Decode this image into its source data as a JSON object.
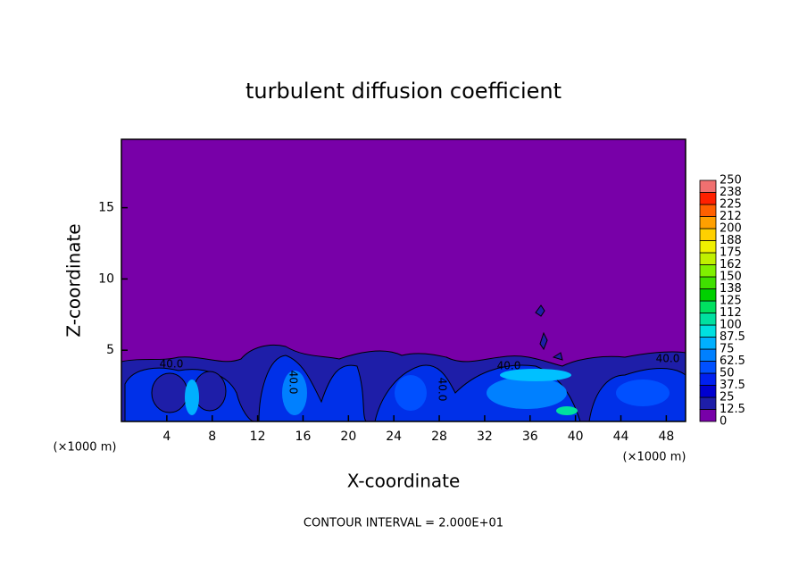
{
  "chart_data": {
    "type": "contour",
    "title": "turbulent diffusion coefficient",
    "x_label": "X-coordinate",
    "y_label": "Z-coordinate",
    "x_unit": "(×1000 m)",
    "y_unit": "(×1000 m)",
    "footer": "CONTOUR INTERVAL = 2.000E+01",
    "xlim": [
      0,
      49.7
    ],
    "ylim": [
      0,
      19.8
    ],
    "xticks": [
      4,
      8,
      12,
      16,
      20,
      24,
      28,
      32,
      36,
      40,
      44,
      48
    ],
    "yticks": [
      5,
      10,
      15
    ],
    "contour_labels": [
      "40.0",
      "40.0",
      "40.0",
      "40.0",
      "40.0"
    ],
    "colorbar": {
      "levels": [
        0,
        12.5,
        25,
        37.5,
        50,
        62.5,
        75,
        87.5,
        100,
        112,
        125,
        138,
        150,
        162,
        175,
        188,
        200,
        212,
        225,
        238,
        250
      ],
      "colors": [
        "#7800a8",
        "#1e1ea8",
        "#0000d0",
        "#0020f0",
        "#0050ff",
        "#0080ff",
        "#00b0ff",
        "#00e0e0",
        "#00e0a0",
        "#00e060",
        "#00d000",
        "#40e000",
        "#80f000",
        "#c0f000",
        "#f0f000",
        "#ffd000",
        "#ffa000",
        "#ff6000",
        "#ff2000",
        "#f07070"
      ]
    }
  }
}
